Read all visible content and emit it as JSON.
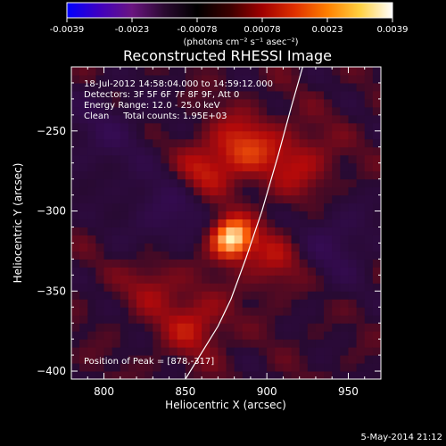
{
  "chart_data": {
    "type": "heatmap",
    "title": "Reconstructed RHESSI Image",
    "xlabel": "Heliocentric X (arcsec)",
    "ylabel": "Heliocentric Y (arcsec)",
    "xlim": [
      780,
      970
    ],
    "ylim": [
      -405,
      -210
    ],
    "xticks": [
      800,
      850,
      900,
      950
    ],
    "yticks": [
      -400,
      -350,
      -300,
      -250
    ],
    "colorbar": {
      "min": -0.0039,
      "max": 0.0039,
      "ticks": [
        "-0.0039",
        "-0.0023",
        "-0.00078",
        "0.00078",
        "0.0023",
        "0.0039"
      ],
      "label": "(photons cm⁻² s⁻¹ asec⁻²)",
      "colors": [
        "#0000ff",
        "#4000c0",
        "#6a1580",
        "#2a0a30",
        "#000000",
        "#3a0000",
        "#a00000",
        "#e03000",
        "#ff8000",
        "#ffd040",
        "#ffffff"
      ]
    },
    "annotations": {
      "time_range": "18-Jul-2012 14:58:04.000 to 14:59:12.000",
      "detectors": "Detectors: 3F 5F 6F 7F 8F 9F, Att 0",
      "energy": "Energy Range: 12.0 - 25.0 keV",
      "clean": "Clean     Total counts: 1.95E+03",
      "peak": "Position of Peak = [878,-317]"
    },
    "peak": {
      "x": 878,
      "y": -317
    },
    "limb_curve": [
      {
        "x": 850,
        "y": -405
      },
      {
        "x": 870,
        "y": -372
      },
      {
        "x": 878,
        "y": -355
      },
      {
        "x": 887,
        "y": -330
      },
      {
        "x": 897,
        "y": -300
      },
      {
        "x": 907,
        "y": -265
      },
      {
        "x": 915,
        "y": -235
      },
      {
        "x": 922,
        "y": -210
      }
    ],
    "sources": [
      {
        "x": 878,
        "y": -317,
        "amp": 1.0,
        "sigma": 9
      },
      {
        "x": 885,
        "y": -260,
        "amp": 0.45,
        "sigma": 14
      },
      {
        "x": 860,
        "y": -275,
        "amp": 0.35,
        "sigma": 12
      },
      {
        "x": 905,
        "y": -330,
        "amp": 0.3,
        "sigma": 14
      },
      {
        "x": 855,
        "y": -370,
        "amp": 0.35,
        "sigma": 14
      },
      {
        "x": 920,
        "y": -270,
        "amp": 0.3,
        "sigma": 16
      },
      {
        "x": 830,
        "y": -345,
        "amp": 0.25,
        "sigma": 12
      },
      {
        "x": 840,
        "y": -300,
        "amp": -0.25,
        "sigma": 18
      },
      {
        "x": 800,
        "y": -250,
        "amp": -0.2,
        "sigma": 20
      },
      {
        "x": 940,
        "y": -320,
        "amp": -0.25,
        "sigma": 18
      }
    ]
  },
  "footer": {
    "date": "5-May-2014 21:12"
  }
}
